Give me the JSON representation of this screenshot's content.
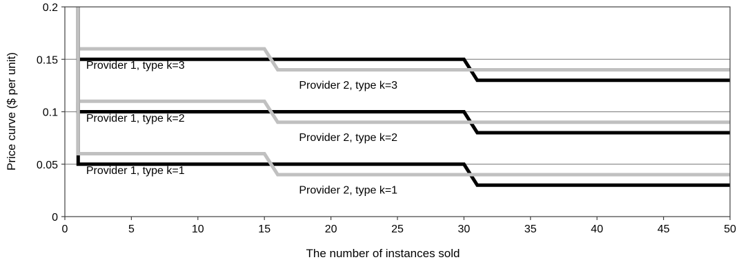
{
  "chart_data": {
    "type": "line",
    "title": "",
    "xlabel": "The number of instances sold",
    "ylabel": "Price curve ($ per unit)",
    "xlim": [
      0,
      50
    ],
    "ylim": [
      0,
      0.2
    ],
    "x_ticks": [
      0,
      5,
      10,
      15,
      20,
      25,
      30,
      35,
      40,
      45,
      50
    ],
    "y_ticks": [
      0,
      0.05,
      0.1,
      0.15,
      0.2
    ],
    "x_tick_labels": [
      "0",
      "5",
      "10",
      "15",
      "20",
      "25",
      "30",
      "35",
      "40",
      "45",
      "50"
    ],
    "y_tick_labels": [
      "0",
      "0.05",
      "0.1",
      "0.15",
      "0.2"
    ],
    "grid": "horizontal",
    "legend": "none",
    "series": [
      {
        "color": "#000000",
        "points": [
          [
            1,
            0.2
          ],
          [
            1,
            0.15
          ],
          [
            30,
            0.15
          ],
          [
            31,
            0.13
          ],
          [
            50,
            0.13
          ]
        ]
      },
      {
        "color": "#c0c0c0",
        "points": [
          [
            1,
            0.2
          ],
          [
            1,
            0.16
          ],
          [
            15,
            0.16
          ],
          [
            16,
            0.14
          ],
          [
            50,
            0.14
          ]
        ]
      },
      {
        "color": "#000000",
        "points": [
          [
            1,
            0.2
          ],
          [
            1,
            0.1
          ],
          [
            30,
            0.1
          ],
          [
            31,
            0.08
          ],
          [
            50,
            0.08
          ]
        ]
      },
      {
        "color": "#c0c0c0",
        "points": [
          [
            1,
            0.2
          ],
          [
            1,
            0.11
          ],
          [
            15,
            0.11
          ],
          [
            16,
            0.09
          ],
          [
            50,
            0.09
          ]
        ]
      },
      {
        "color": "#000000",
        "points": [
          [
            1,
            0.2
          ],
          [
            1,
            0.05
          ],
          [
            30,
            0.05
          ],
          [
            31,
            0.03
          ],
          [
            50,
            0.03
          ]
        ]
      },
      {
        "color": "#c0c0c0",
        "points": [
          [
            1,
            0.2
          ],
          [
            1,
            0.06
          ],
          [
            15,
            0.06
          ],
          [
            16,
            0.04
          ],
          [
            50,
            0.04
          ]
        ]
      }
    ],
    "annotations": [
      {
        "text": "Provider 1, type k=3",
        "x": 1.6,
        "y": 0.141
      },
      {
        "text": "Provider 2, type k=3",
        "x": 17.6,
        "y": 0.122
      },
      {
        "text": "Provider 1, type k=2",
        "x": 1.6,
        "y": 0.0905
      },
      {
        "text": "Provider 2, type k=2",
        "x": 17.6,
        "y": 0.072
      },
      {
        "text": "Provider 1, type k=1",
        "x": 1.6,
        "y": 0.0405
      },
      {
        "text": "Provider 2, type k=1",
        "x": 17.6,
        "y": 0.022
      }
    ]
  }
}
